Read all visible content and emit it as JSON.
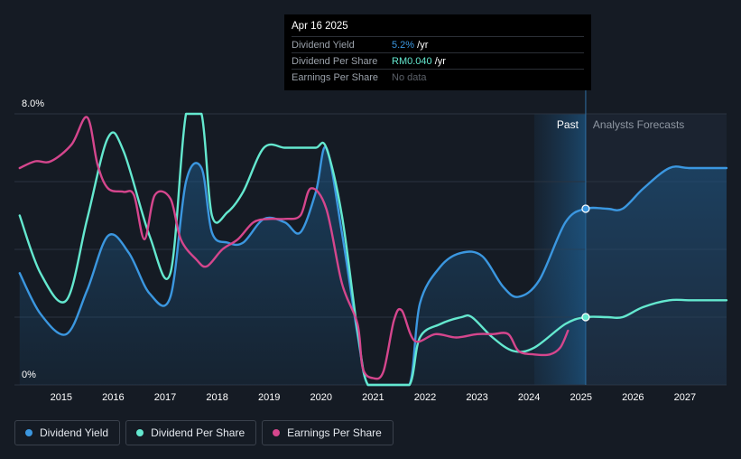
{
  "tooltip": {
    "date": "Apr 16 2025",
    "rows": [
      {
        "label": "Dividend Yield",
        "value": "5.2%",
        "unit": " /yr"
      },
      {
        "label": "Dividend Per Share",
        "value": "RM0.040",
        "unit": " /yr"
      },
      {
        "label": "Earnings Per Share",
        "value": "No data",
        "unit": ""
      }
    ]
  },
  "bands": {
    "past": "Past",
    "forecast": "Analysts Forecasts"
  },
  "legend": [
    {
      "label": "Dividend Yield",
      "color": "#3b97e0"
    },
    {
      "label": "Dividend Per Share",
      "color": "#64e8cf"
    },
    {
      "label": "Earnings Per Share",
      "color": "#d5468d"
    }
  ],
  "chart_data": {
    "type": "line",
    "x_ticks": [
      "2015",
      "2016",
      "2017",
      "2018",
      "2019",
      "2020",
      "2021",
      "2022",
      "2023",
      "2024",
      "2025",
      "2026",
      "2027"
    ],
    "y_tick_labels": [
      "0%",
      "8.0%"
    ],
    "ylim": [
      0,
      8.0
    ],
    "xlim": [
      2014.3,
      2028.0
    ],
    "past_forecast_split": 2025.29,
    "grid": true,
    "legend_position": "bottom-left",
    "series": [
      {
        "name": "Dividend Yield",
        "color": "#3b97e0",
        "area": true,
        "points": [
          [
            2014.4,
            3.3
          ],
          [
            2014.8,
            2.1
          ],
          [
            2015.3,
            1.5
          ],
          [
            2015.7,
            2.8
          ],
          [
            2016.1,
            4.4
          ],
          [
            2016.5,
            3.9
          ],
          [
            2016.9,
            2.7
          ],
          [
            2017.3,
            2.6
          ],
          [
            2017.6,
            6.0
          ],
          [
            2017.9,
            6.4
          ],
          [
            2018.1,
            4.5
          ],
          [
            2018.4,
            4.2
          ],
          [
            2018.7,
            4.2
          ],
          [
            2019.1,
            4.9
          ],
          [
            2019.5,
            4.8
          ],
          [
            2019.8,
            4.5
          ],
          [
            2020.1,
            5.7
          ],
          [
            2020.3,
            7.0
          ],
          [
            2020.6,
            4.5
          ],
          [
            2020.9,
            1.5
          ],
          [
            2021.1,
            0.0
          ],
          [
            2021.5,
            0.0
          ],
          [
            2021.9,
            0.0
          ],
          [
            2022.1,
            2.4
          ],
          [
            2022.5,
            3.5
          ],
          [
            2022.9,
            3.9
          ],
          [
            2023.3,
            3.8
          ],
          [
            2023.7,
            2.9
          ],
          [
            2024.0,
            2.6
          ],
          [
            2024.4,
            3.1
          ],
          [
            2024.9,
            4.8
          ],
          [
            2025.29,
            5.2
          ],
          [
            2025.7,
            5.2
          ],
          [
            2026.0,
            5.2
          ],
          [
            2026.4,
            5.8
          ],
          [
            2026.9,
            6.4
          ],
          [
            2027.3,
            6.4
          ],
          [
            2028.0,
            6.4
          ]
        ]
      },
      {
        "name": "Dividend Per Share",
        "color": "#64e8cf",
        "area": false,
        "points": [
          [
            2014.4,
            5.0
          ],
          [
            2014.8,
            3.3
          ],
          [
            2015.3,
            2.5
          ],
          [
            2015.7,
            4.9
          ],
          [
            2016.1,
            7.3
          ],
          [
            2016.4,
            6.9
          ],
          [
            2016.9,
            4.4
          ],
          [
            2017.3,
            3.3
          ],
          [
            2017.6,
            8.0
          ],
          [
            2017.9,
            8.0
          ],
          [
            2018.1,
            5.0
          ],
          [
            2018.4,
            5.1
          ],
          [
            2018.7,
            5.7
          ],
          [
            2019.1,
            7.0
          ],
          [
            2019.5,
            7.0
          ],
          [
            2019.8,
            7.0
          ],
          [
            2020.1,
            7.0
          ],
          [
            2020.3,
            7.0
          ],
          [
            2020.6,
            5.0
          ],
          [
            2020.9,
            1.6
          ],
          [
            2021.1,
            0.0
          ],
          [
            2021.5,
            0.0
          ],
          [
            2021.9,
            0.0
          ],
          [
            2022.1,
            1.4
          ],
          [
            2022.5,
            1.8
          ],
          [
            2022.9,
            2.0
          ],
          [
            2023.1,
            2.0
          ],
          [
            2023.5,
            1.4
          ],
          [
            2023.9,
            1.0
          ],
          [
            2024.3,
            1.1
          ],
          [
            2024.9,
            1.8
          ],
          [
            2025.29,
            2.0
          ],
          [
            2025.7,
            2.0
          ],
          [
            2026.0,
            2.0
          ],
          [
            2026.4,
            2.3
          ],
          [
            2026.9,
            2.5
          ],
          [
            2027.3,
            2.5
          ],
          [
            2028.0,
            2.5
          ]
        ]
      },
      {
        "name": "Earnings Per Share",
        "color": "#d5468d",
        "area": false,
        "points": [
          [
            2014.4,
            6.4
          ],
          [
            2014.7,
            6.6
          ],
          [
            2015.0,
            6.6
          ],
          [
            2015.4,
            7.1
          ],
          [
            2015.7,
            7.9
          ],
          [
            2015.9,
            6.5
          ],
          [
            2016.1,
            5.8
          ],
          [
            2016.4,
            5.7
          ],
          [
            2016.6,
            5.6
          ],
          [
            2016.8,
            4.3
          ],
          [
            2017.0,
            5.6
          ],
          [
            2017.3,
            5.5
          ],
          [
            2017.5,
            4.3
          ],
          [
            2017.8,
            3.7
          ],
          [
            2018.0,
            3.5
          ],
          [
            2018.3,
            4.0
          ],
          [
            2018.6,
            4.3
          ],
          [
            2018.9,
            4.8
          ],
          [
            2019.2,
            4.9
          ],
          [
            2019.5,
            4.9
          ],
          [
            2019.8,
            5.0
          ],
          [
            2020.0,
            5.8
          ],
          [
            2020.3,
            5.2
          ],
          [
            2020.6,
            3.0
          ],
          [
            2020.9,
            1.8
          ],
          [
            2021.0,
            0.5
          ],
          [
            2021.2,
            0.2
          ],
          [
            2021.4,
            0.4
          ],
          [
            2021.6,
            1.9
          ],
          [
            2021.75,
            2.2
          ],
          [
            2022.0,
            1.3
          ],
          [
            2022.4,
            1.5
          ],
          [
            2022.8,
            1.4
          ],
          [
            2023.2,
            1.5
          ],
          [
            2023.5,
            1.5
          ],
          [
            2023.8,
            1.5
          ],
          [
            2024.0,
            1.0
          ],
          [
            2024.3,
            0.9
          ],
          [
            2024.6,
            0.9
          ],
          [
            2024.8,
            1.1
          ],
          [
            2024.95,
            1.6
          ]
        ]
      }
    ]
  }
}
